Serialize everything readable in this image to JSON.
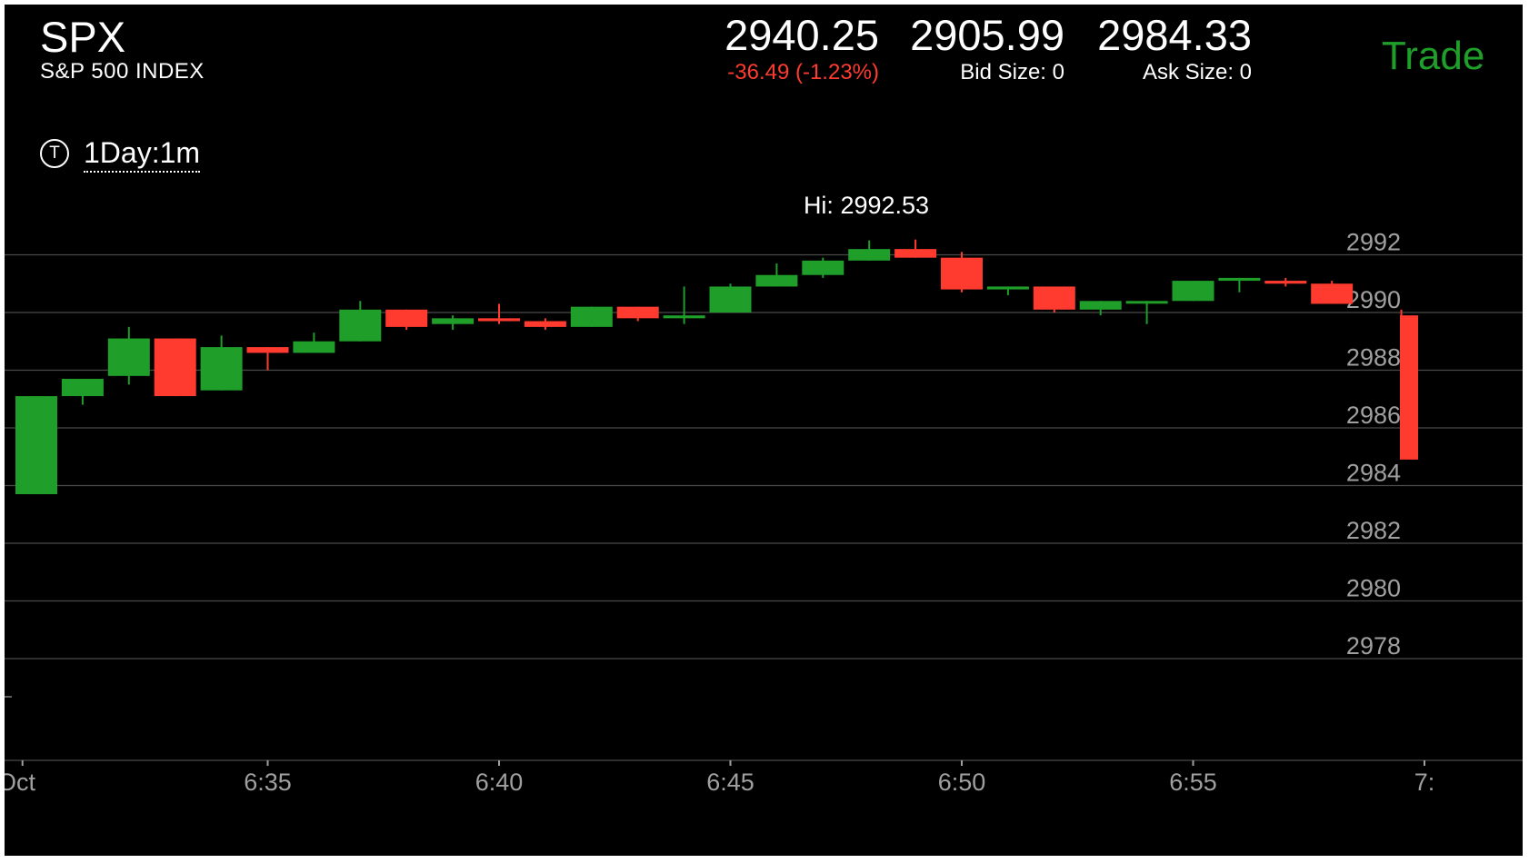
{
  "header": {
    "symbol": "SPX",
    "description": "S&P 500 INDEX",
    "last_price": "2940.25",
    "change": "-36.49 (-1.23%)",
    "bid": "2905.99",
    "bid_size": "Bid Size: 0",
    "ask": "2984.33",
    "ask_size": "Ask Size: 0",
    "trade_label": "Trade"
  },
  "timeframe": {
    "icon": "T",
    "label": "1Day:1m"
  },
  "colors": {
    "up": "#1f9e2a",
    "down": "#ff3b30",
    "grid": "#4a4a4a",
    "axis_text": "#a0a0a0",
    "background": "#000000",
    "trade": "#1f9e2a"
  },
  "chart_data": {
    "type": "candlestick",
    "hi_label": "Hi: 2992.53",
    "y_ticks": [
      "2992",
      "2990",
      "2988",
      "2986",
      "2984",
      "2982",
      "2980",
      "2978"
    ],
    "x_ticks": [
      "Oct",
      "6:35",
      "6:40",
      "6:45",
      "6:50",
      "6:55",
      "7:"
    ],
    "ylim": [
      2975,
      2993
    ],
    "candles": [
      {
        "time": "6:30",
        "open": 2983.7,
        "close": 2987.1,
        "high": 2987.1,
        "low": 2983.7
      },
      {
        "time": "6:31",
        "open": 2987.1,
        "close": 2987.7,
        "high": 2987.7,
        "low": 2986.8
      },
      {
        "time": "6:32",
        "open": 2987.8,
        "close": 2989.1,
        "high": 2989.5,
        "low": 2987.5
      },
      {
        "time": "6:33",
        "open": 2989.1,
        "close": 2987.1,
        "high": 2989.1,
        "low": 2987.1
      },
      {
        "time": "6:34",
        "open": 2987.3,
        "close": 2988.8,
        "high": 2989.2,
        "low": 2987.3
      },
      {
        "time": "6:35",
        "open": 2988.8,
        "close": 2988.6,
        "high": 2988.8,
        "low": 2988.0
      },
      {
        "time": "6:36",
        "open": 2988.6,
        "close": 2989.0,
        "high": 2989.3,
        "low": 2988.6
      },
      {
        "time": "6:37",
        "open": 2989.0,
        "close": 2990.1,
        "high": 2990.4,
        "low": 2989.0
      },
      {
        "time": "6:38",
        "open": 2990.1,
        "close": 2989.5,
        "high": 2990.1,
        "low": 2989.4
      },
      {
        "time": "6:39",
        "open": 2989.6,
        "close": 2989.8,
        "high": 2989.9,
        "low": 2989.4
      },
      {
        "time": "6:40",
        "open": 2989.8,
        "close": 2989.7,
        "high": 2990.3,
        "low": 2989.6
      },
      {
        "time": "6:41",
        "open": 2989.7,
        "close": 2989.5,
        "high": 2989.8,
        "low": 2989.4
      },
      {
        "time": "6:42",
        "open": 2989.5,
        "close": 2990.2,
        "high": 2990.2,
        "low": 2989.5
      },
      {
        "time": "6:43",
        "open": 2990.2,
        "close": 2989.8,
        "high": 2990.2,
        "low": 2989.7
      },
      {
        "time": "6:44",
        "open": 2989.8,
        "close": 2989.9,
        "high": 2990.9,
        "low": 2989.6
      },
      {
        "time": "6:45",
        "open": 2990.0,
        "close": 2990.9,
        "high": 2991.0,
        "low": 2990.0
      },
      {
        "time": "6:46",
        "open": 2990.9,
        "close": 2991.3,
        "high": 2991.7,
        "low": 2990.9
      },
      {
        "time": "6:47",
        "open": 2991.3,
        "close": 2991.8,
        "high": 2991.9,
        "low": 2991.2
      },
      {
        "time": "6:48",
        "open": 2991.8,
        "close": 2992.2,
        "high": 2992.5,
        "low": 2991.8
      },
      {
        "time": "6:49",
        "open": 2992.2,
        "close": 2991.9,
        "high": 2992.53,
        "low": 2991.9
      },
      {
        "time": "6:50",
        "open": 2991.9,
        "close": 2990.8,
        "high": 2992.1,
        "low": 2990.7
      },
      {
        "time": "6:51",
        "open": 2990.8,
        "close": 2990.9,
        "high": 2990.9,
        "low": 2990.6
      },
      {
        "time": "6:52",
        "open": 2990.9,
        "close": 2990.1,
        "high": 2990.9,
        "low": 2990.0
      },
      {
        "time": "6:53",
        "open": 2990.1,
        "close": 2990.4,
        "high": 2990.4,
        "low": 2989.9
      },
      {
        "time": "6:54",
        "open": 2990.4,
        "close": 2990.4,
        "high": 2990.4,
        "low": 2989.6
      },
      {
        "time": "6:55",
        "open": 2990.4,
        "close": 2991.1,
        "high": 2991.1,
        "low": 2990.4
      },
      {
        "time": "6:56",
        "open": 2991.1,
        "close": 2991.2,
        "high": 2991.2,
        "low": 2990.7
      },
      {
        "time": "6:57",
        "open": 2991.1,
        "close": 2991.0,
        "high": 2991.2,
        "low": 2990.9
      },
      {
        "time": "6:58",
        "open": 2991.0,
        "close": 2990.3,
        "high": 2991.1,
        "low": 2990.3
      }
    ]
  }
}
